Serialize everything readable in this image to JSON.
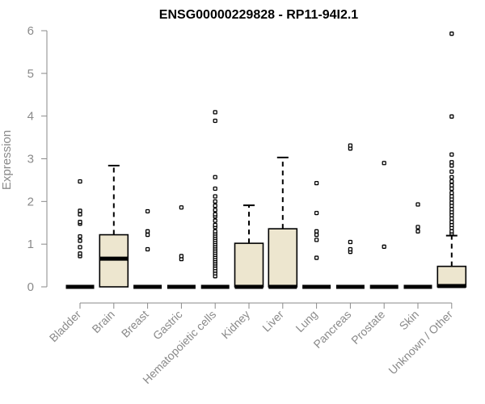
{
  "chart_data": {
    "type": "boxplot",
    "title": "ENSG00000229828 - RP11-94I2.1",
    "ylabel": "Expression",
    "xlabel": "",
    "ylim": [
      0,
      6
    ],
    "yticks": [
      0,
      1,
      2,
      3,
      4,
      5,
      6
    ],
    "box_fill": "#ede6cf",
    "categories": [
      "Bladder",
      "Brain",
      "Breast",
      "Gastric",
      "Hematopoietic cells",
      "Kidney",
      "Liver",
      "Lung",
      "Pancreas",
      "Prostate",
      "Skin",
      "Unknown / Other"
    ],
    "boxes": [
      {
        "category": "Bladder",
        "q1": 0,
        "median": 0,
        "q3": 0,
        "whisker_low": 0,
        "whisker_high": 0,
        "outliers": [
          0.72,
          0.78,
          0.93,
          1.08,
          1.18,
          1.48,
          1.52,
          1.7,
          1.78,
          2.47
        ]
      },
      {
        "category": "Brain",
        "q1": 0,
        "median": 0.66,
        "q3": 1.22,
        "whisker_low": 0,
        "whisker_high": 2.84,
        "outliers": []
      },
      {
        "category": "Breast",
        "q1": 0,
        "median": 0,
        "q3": 0,
        "whisker_low": 0,
        "whisker_high": 0,
        "outliers": [
          0.88,
          1.22,
          1.3,
          1.77
        ]
      },
      {
        "category": "Gastric",
        "q1": 0,
        "median": 0,
        "q3": 0,
        "whisker_low": 0,
        "whisker_high": 0,
        "outliers": [
          0.65,
          0.72,
          1.86
        ]
      },
      {
        "category": "Hematopoietic cells",
        "q1": 0,
        "median": 0,
        "q3": 0,
        "whisker_low": 0,
        "whisker_high": 0,
        "outliers": [
          0.25,
          0.32,
          0.38,
          0.44,
          0.5,
          0.55,
          0.6,
          0.65,
          0.7,
          0.75,
          0.8,
          0.85,
          0.9,
          0.95,
          1.0,
          1.05,
          1.1,
          1.15,
          1.2,
          1.25,
          1.3,
          1.4,
          1.45,
          1.55,
          1.65,
          1.7,
          1.8,
          1.9,
          2.0,
          2.12,
          2.3,
          2.57,
          3.89,
          4.09
        ]
      },
      {
        "category": "Kidney",
        "q1": 0,
        "median": 0,
        "q3": 1.02,
        "whisker_low": 0,
        "whisker_high": 1.91,
        "outliers": []
      },
      {
        "category": "Liver",
        "q1": 0,
        "median": 0,
        "q3": 1.36,
        "whisker_low": 0,
        "whisker_high": 3.03,
        "outliers": []
      },
      {
        "category": "Lung",
        "q1": 0,
        "median": 0,
        "q3": 0,
        "whisker_low": 0,
        "whisker_high": 0,
        "outliers": [
          0.68,
          1.1,
          1.22,
          1.3,
          1.73,
          2.43
        ]
      },
      {
        "category": "Pancreas",
        "q1": 0,
        "median": 0,
        "q3": 0,
        "whisker_low": 0,
        "whisker_high": 0,
        "outliers": [
          0.82,
          0.88,
          1.05,
          3.24,
          3.31
        ]
      },
      {
        "category": "Prostate",
        "q1": 0,
        "median": 0,
        "q3": 0,
        "whisker_low": 0,
        "whisker_high": 0,
        "outliers": [
          0.94,
          2.9
        ]
      },
      {
        "category": "Skin",
        "q1": 0,
        "median": 0,
        "q3": 0,
        "whisker_low": 0,
        "whisker_high": 0,
        "outliers": [
          1.3,
          1.4,
          1.93
        ]
      },
      {
        "category": "Unknown / Other",
        "q1": 0,
        "median": 0.02,
        "q3": 0.48,
        "whisker_low": 0,
        "whisker_high": 1.2,
        "outliers": [
          1.25,
          1.3,
          1.38,
          1.45,
          1.52,
          1.6,
          1.68,
          1.75,
          1.82,
          1.9,
          1.97,
          2.05,
          2.12,
          2.2,
          2.3,
          2.38,
          2.47,
          2.57,
          2.7,
          2.84,
          2.92,
          3.1,
          3.99,
          5.93
        ]
      }
    ]
  }
}
